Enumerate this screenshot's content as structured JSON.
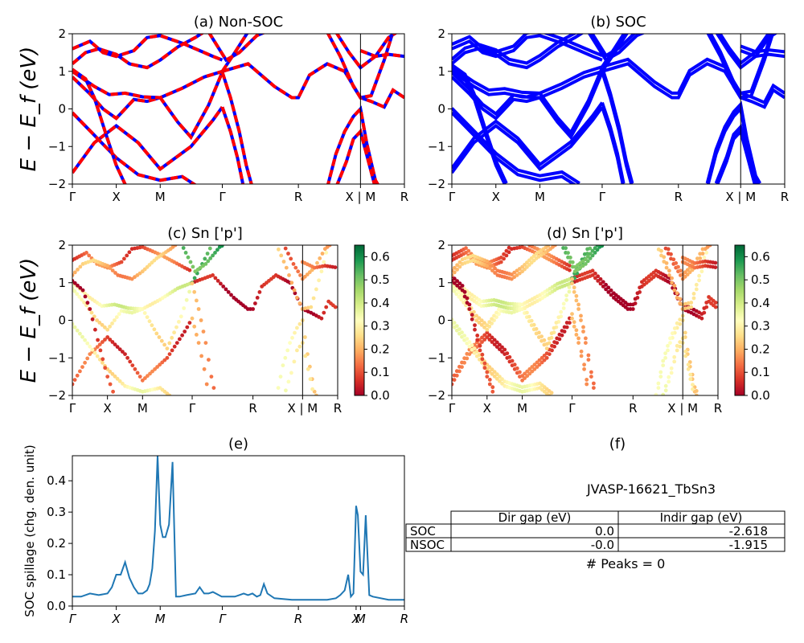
{
  "figure_id": "JVASP-16621_TbSn3",
  "chart_data": [
    {
      "id": "a",
      "type": "line",
      "title": "(a) Non-SOC",
      "ylabel": "E − E_f (eV)",
      "ylim": [
        -2,
        2
      ],
      "yticks": [
        -2,
        -1,
        0,
        1,
        2
      ],
      "kpath_ticks": [
        {
          "label": "Γ",
          "x": 0.0
        },
        {
          "label": "X",
          "x": 0.5
        },
        {
          "label": "M",
          "x": 1.0
        },
        {
          "label": "Γ",
          "x": 1.707
        },
        {
          "label": "R",
          "x": 2.573
        },
        {
          "label": "X | M",
          "x": 3.28
        },
        {
          "label": "R",
          "x": 3.78
        }
      ],
      "series_style": [
        {
          "role": "spin-up",
          "color": "#0000ff",
          "dashed": false
        },
        {
          "role": "spin-down",
          "color": "#ff0000",
          "dashed": true
        }
      ],
      "bands": [
        [
          [
            0,
            -1.7
          ],
          [
            0.25,
            -0.9
          ],
          [
            0.5,
            -0.45
          ],
          [
            0.75,
            -0.9
          ],
          [
            1.0,
            -1.6
          ],
          [
            1.35,
            -1.0
          ],
          [
            1.6,
            -0.3
          ],
          [
            1.707,
            0.05
          ]
        ],
        [
          [
            0,
            -0.1
          ],
          [
            0.25,
            -0.7
          ],
          [
            0.5,
            -1.3
          ],
          [
            0.75,
            -1.75
          ],
          [
            1.0,
            -1.9
          ],
          [
            1.25,
            -1.8
          ],
          [
            1.45,
            -2.1
          ]
        ],
        [
          [
            0,
            0.85
          ],
          [
            0.2,
            0.4
          ],
          [
            0.35,
            0.0
          ],
          [
            0.5,
            -0.25
          ],
          [
            0.7,
            0.25
          ],
          [
            0.85,
            0.2
          ],
          [
            1.0,
            0.3
          ],
          [
            1.2,
            -0.35
          ],
          [
            1.35,
            -0.75
          ],
          [
            1.55,
            0.1
          ],
          [
            1.707,
            0.98
          ]
        ],
        [
          [
            0,
            1.0
          ],
          [
            0.25,
            0.6
          ],
          [
            0.42,
            0.38
          ],
          [
            0.6,
            0.42
          ],
          [
            0.8,
            0.32
          ],
          [
            1.0,
            0.3
          ],
          [
            1.25,
            0.55
          ],
          [
            1.5,
            0.85
          ],
          [
            1.707,
            1.0
          ]
        ],
        [
          [
            0,
            1.05
          ],
          [
            0.15,
            0.8
          ],
          [
            0.25,
            0.3
          ],
          [
            0.4,
            -0.8
          ],
          [
            0.5,
            -1.5
          ],
          [
            0.62,
            -2.1
          ]
        ],
        [
          [
            0,
            1.6
          ],
          [
            0.2,
            1.8
          ],
          [
            0.35,
            1.5
          ],
          [
            0.5,
            1.4
          ],
          [
            0.7,
            1.55
          ],
          [
            0.85,
            1.9
          ],
          [
            1.0,
            1.95
          ],
          [
            1.25,
            1.75
          ],
          [
            1.45,
            1.55
          ],
          [
            1.6,
            1.4
          ],
          [
            1.707,
            1.3
          ]
        ],
        [
          [
            0,
            1.2
          ],
          [
            0.15,
            1.5
          ],
          [
            0.3,
            1.6
          ],
          [
            0.5,
            1.45
          ],
          [
            0.65,
            1.2
          ],
          [
            0.85,
            1.1
          ],
          [
            1.0,
            1.3
          ],
          [
            1.2,
            1.65
          ],
          [
            1.4,
            1.9
          ],
          [
            1.5,
            2.05
          ]
        ],
        [
          [
            1.707,
            1.0
          ],
          [
            2.0,
            1.2
          ],
          [
            2.3,
            0.6
          ],
          [
            2.5,
            0.3
          ],
          [
            2.573,
            0.3
          ],
          [
            2.7,
            0.9
          ],
          [
            2.9,
            1.2
          ],
          [
            3.1,
            1.0
          ],
          [
            3.28,
            0.3
          ],
          [
            3.4,
            0.2
          ],
          [
            3.55,
            0.05
          ],
          [
            3.65,
            0.5
          ],
          [
            3.78,
            0.3
          ]
        ],
        [
          [
            1.707,
            1.0
          ],
          [
            1.85,
            1.5
          ],
          [
            2.0,
            2.05
          ]
        ],
        [
          [
            1.707,
            0.98
          ],
          [
            1.8,
            0.3
          ],
          [
            1.9,
            -0.6
          ],
          [
            1.98,
            -1.5
          ],
          [
            2.05,
            -2.1
          ]
        ],
        [
          [
            1.707,
            0.05
          ],
          [
            1.8,
            -0.6
          ],
          [
            1.88,
            -1.3
          ],
          [
            1.95,
            -2.1
          ]
        ],
        [
          [
            1.55,
            2.05
          ],
          [
            1.75,
            1.3
          ],
          [
            1.9,
            1.5
          ],
          [
            2.1,
            1.95
          ],
          [
            2.2,
            2.05
          ]
        ],
        [
          [
            2.9,
            -2.1
          ],
          [
            3.0,
            -1.2
          ],
          [
            3.1,
            -0.6
          ],
          [
            3.2,
            -0.2
          ],
          [
            3.28,
            0.0
          ],
          [
            3.35,
            -0.9
          ],
          [
            3.45,
            -1.9
          ],
          [
            3.5,
            -2.1
          ]
        ],
        [
          [
            3.0,
            -2.1
          ],
          [
            3.12,
            -1.4
          ],
          [
            3.2,
            -0.8
          ],
          [
            3.28,
            -0.6
          ],
          [
            3.36,
            -1.3
          ],
          [
            3.45,
            -2.1
          ]
        ],
        [
          [
            2.9,
            2.05
          ],
          [
            3.05,
            1.4
          ],
          [
            3.2,
            0.6
          ],
          [
            3.28,
            0.3
          ],
          [
            3.4,
            0.35
          ],
          [
            3.55,
            1.3
          ],
          [
            3.65,
            2.05
          ]
        ],
        [
          [
            3.0,
            2.05
          ],
          [
            3.15,
            1.5
          ],
          [
            3.28,
            1.1
          ],
          [
            3.45,
            1.4
          ],
          [
            3.6,
            1.9
          ],
          [
            3.7,
            2.05
          ]
        ],
        [
          [
            3.28,
            1.55
          ],
          [
            3.45,
            1.4
          ],
          [
            3.6,
            1.45
          ],
          [
            3.78,
            1.4
          ]
        ]
      ]
    },
    {
      "id": "b",
      "type": "line",
      "title": "(b) SOC",
      "ylim": [
        -2,
        2
      ],
      "yticks": [
        -2,
        -1,
        0,
        1,
        2
      ],
      "color": "#0000ff",
      "kpath_ticks_ref": "a",
      "bands_ref": "a",
      "soc_offset": 0.12
    },
    {
      "id": "c",
      "type": "scatter",
      "title": "(c)  Sn ['p']",
      "ylabel": "E − E_f (eV)",
      "ylim": [
        -2,
        2
      ],
      "yticks": [
        -2,
        -1,
        0,
        1,
        2
      ],
      "colorbar": {
        "min": 0.0,
        "max": 0.65,
        "ticks": [
          0.0,
          0.1,
          0.2,
          0.3,
          0.4,
          0.5,
          0.6
        ],
        "cmap": "RdYlGn"
      },
      "kpath_ticks": [
        {
          "label": "Γ",
          "x": 0.0
        },
        {
          "label": "X",
          "x": 0.5
        },
        {
          "label": "M",
          "x": 1.0
        },
        {
          "label": "Γ",
          "x": 1.707
        },
        {
          "label": "R",
          "x": 2.573
        },
        {
          "label": "X | M",
          "x": 3.28
        },
        {
          "label": "R",
          "x": 3.78
        }
      ],
      "bands_ref": "a",
      "band_weights": [
        0.1,
        0.3,
        0.3,
        0.35,
        0.05,
        0.12,
        0.2,
        0.02,
        0.5,
        0.18,
        0.22,
        0.55,
        0.28,
        0.33,
        0.25,
        0.15,
        0.1
      ]
    },
    {
      "id": "d",
      "type": "scatter",
      "title": "(d) Sn ['p']",
      "ylim": [
        -2,
        2
      ],
      "yticks": [
        -2,
        -1,
        0,
        1,
        2
      ],
      "colorbar": {
        "min": 0.0,
        "max": 0.65,
        "ticks": [
          0.0,
          0.1,
          0.2,
          0.3,
          0.4,
          0.5,
          0.6
        ],
        "cmap": "RdYlGn"
      },
      "kpath_ticks_ref": "c",
      "bands_ref": "a",
      "soc_offset": 0.12,
      "band_weights_ref": "c"
    },
    {
      "id": "e",
      "type": "line",
      "title": "(e)",
      "ylabel": "SOC spillage (chg. den. unit)",
      "ylim": [
        0,
        0.48
      ],
      "yticks": [
        0.0,
        0.1,
        0.2,
        0.3,
        0.4
      ],
      "color": "#1f77b4",
      "kpath_ticks": [
        {
          "label": "Γ",
          "x": 0.0
        },
        {
          "label": "X",
          "x": 0.5
        },
        {
          "label": "M",
          "x": 1.0
        },
        {
          "label": "Γ",
          "x": 1.707
        },
        {
          "label": "R",
          "x": 2.573
        },
        {
          "label": "X",
          "x": 3.23
        },
        {
          "label": "M",
          "x": 3.28
        },
        {
          "label": "R",
          "x": 3.78
        }
      ],
      "x": [
        0.0,
        0.1,
        0.2,
        0.3,
        0.4,
        0.45,
        0.5,
        0.55,
        0.6,
        0.65,
        0.7,
        0.75,
        0.8,
        0.85,
        0.88,
        0.91,
        0.94,
        0.97,
        1.0,
        1.03,
        1.06,
        1.1,
        1.14,
        1.18,
        1.22,
        1.3,
        1.4,
        1.45,
        1.5,
        1.55,
        1.6,
        1.7,
        1.8,
        1.85,
        1.9,
        1.95,
        2.0,
        2.05,
        2.1,
        2.14,
        2.18,
        2.22,
        2.3,
        2.5,
        2.7,
        2.9,
        3.0,
        3.05,
        3.1,
        3.14,
        3.17,
        3.2,
        3.23,
        3.25,
        3.28,
        3.31,
        3.34,
        3.38,
        3.42,
        3.6,
        3.78
      ],
      "values": [
        0.03,
        0.03,
        0.04,
        0.035,
        0.04,
        0.06,
        0.1,
        0.1,
        0.14,
        0.09,
        0.06,
        0.04,
        0.04,
        0.05,
        0.07,
        0.12,
        0.24,
        0.48,
        0.26,
        0.22,
        0.22,
        0.26,
        0.46,
        0.03,
        0.03,
        0.035,
        0.04,
        0.06,
        0.04,
        0.04,
        0.045,
        0.03,
        0.03,
        0.03,
        0.035,
        0.04,
        0.035,
        0.04,
        0.03,
        0.035,
        0.07,
        0.04,
        0.025,
        0.02,
        0.02,
        0.02,
        0.025,
        0.035,
        0.05,
        0.1,
        0.03,
        0.04,
        0.32,
        0.29,
        0.11,
        0.1,
        0.29,
        0.035,
        0.03,
        0.02,
        0.02
      ]
    }
  ],
  "table": {
    "caption": "JVASP-16621_TbSn3",
    "headers": [
      "",
      "Dir gap (eV)",
      "Indir gap (eV)"
    ],
    "rows": [
      {
        "label": "SOC",
        "dir": "0.0",
        "indir": "-2.618"
      },
      {
        "label": "NSOC",
        "dir": "-0.0",
        "indir": "-1.915"
      }
    ],
    "peaks": "# Peaks = 0",
    "panel_title": "(f)"
  }
}
